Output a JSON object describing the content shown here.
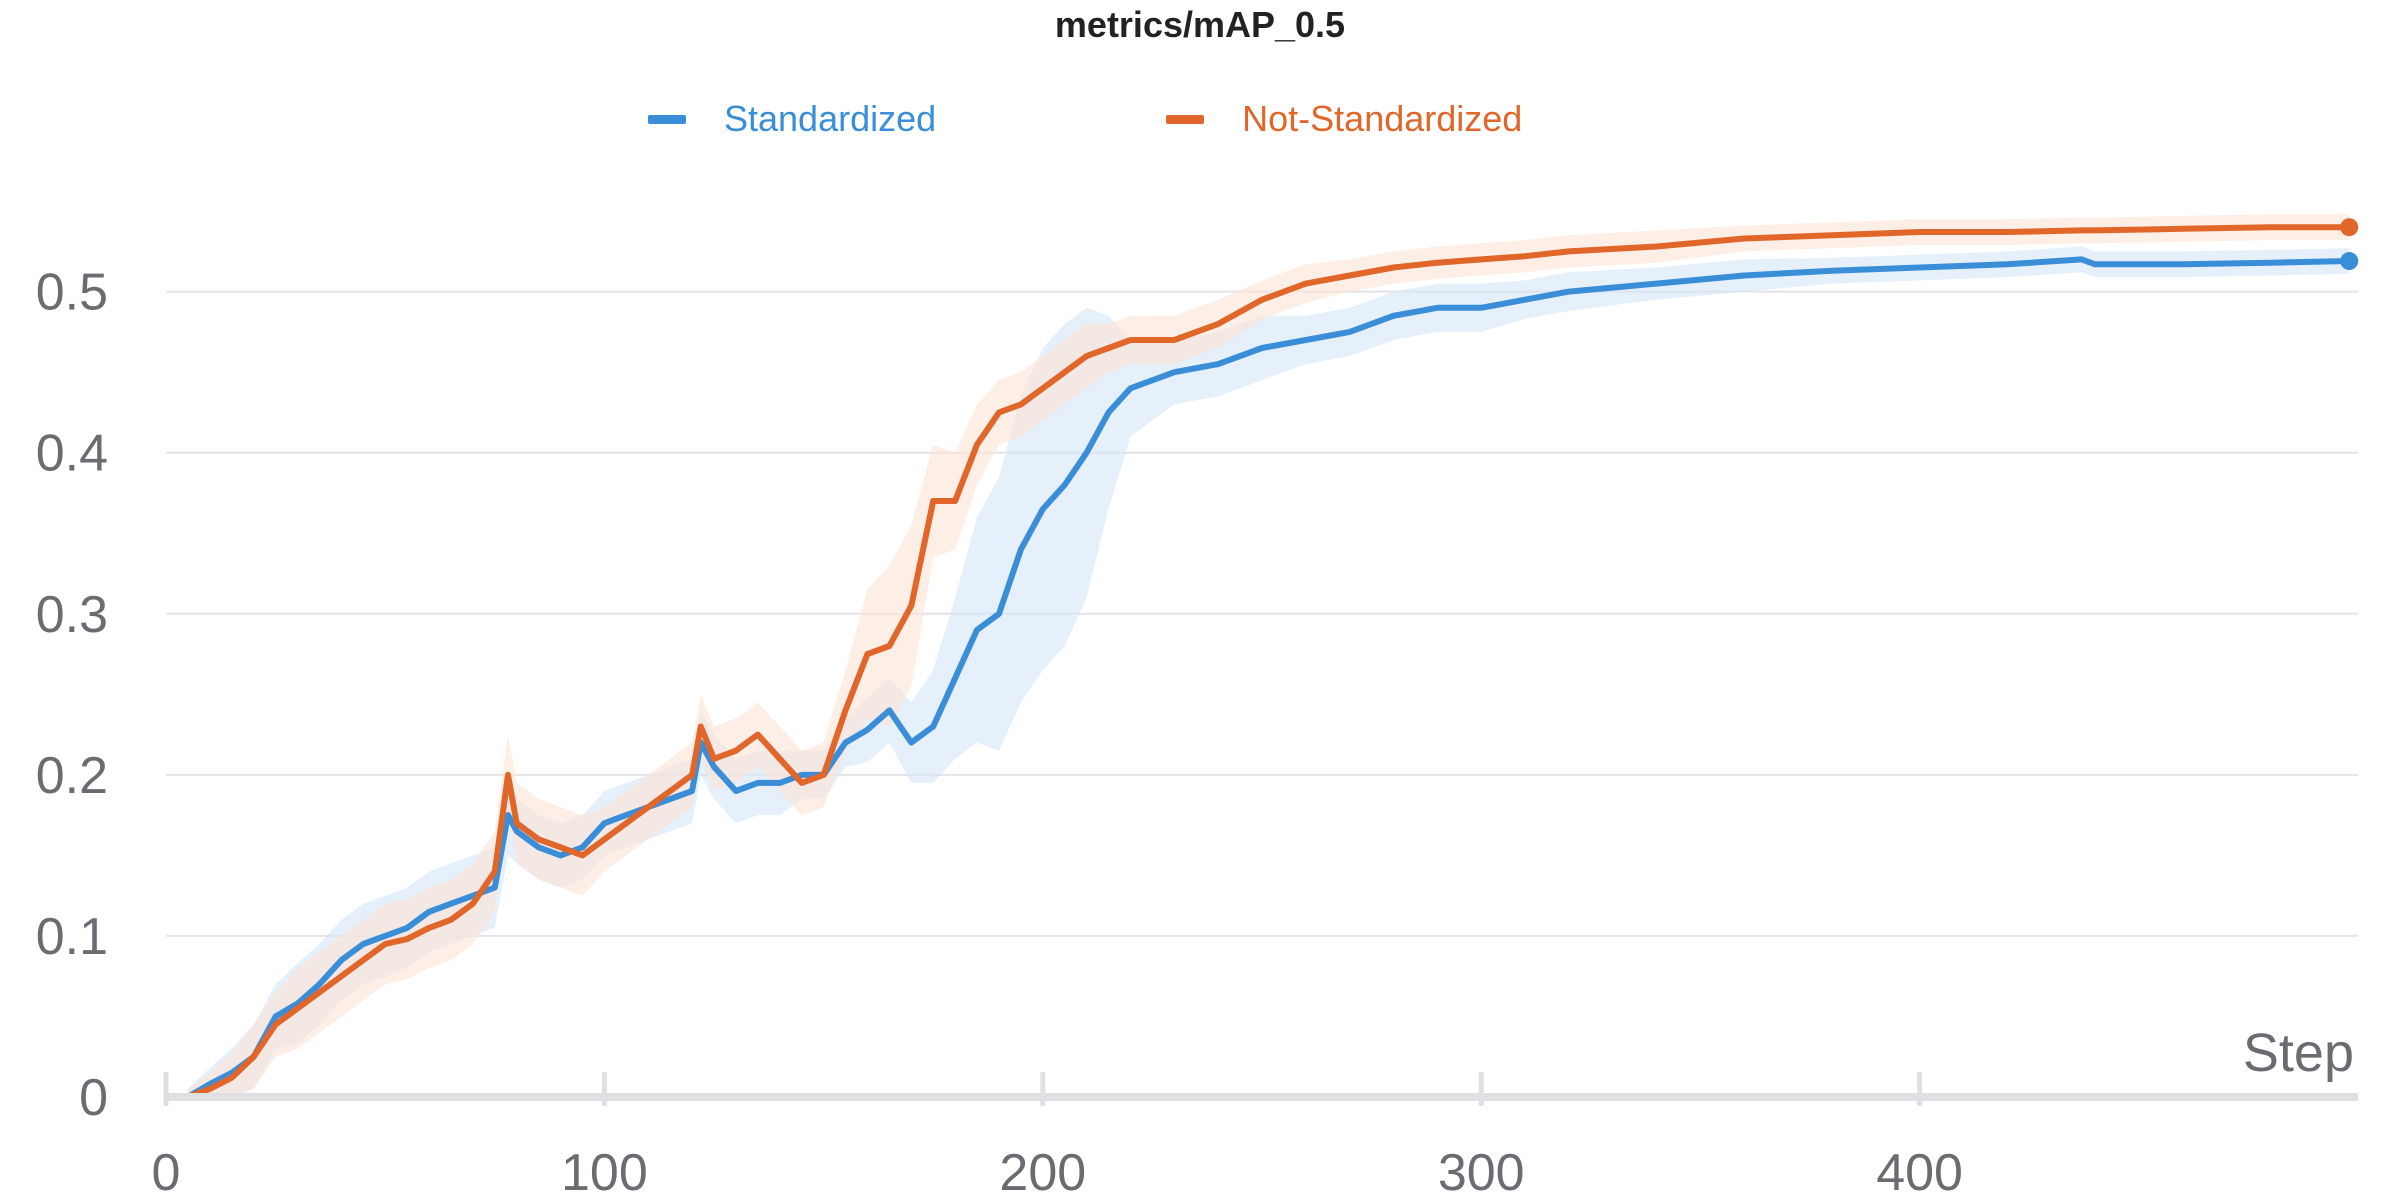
{
  "chart_data": {
    "type": "line",
    "title": "metrics/mAP_0.5",
    "xlabel": "Step",
    "ylabel": "",
    "xlim": [
      0,
      500
    ],
    "ylim": [
      0,
      0.56
    ],
    "grid": true,
    "legend_position": "top",
    "x_ticks": [
      "0",
      "100",
      "200",
      "300",
      "400"
    ],
    "x_tick_values": [
      0,
      100,
      200,
      300,
      400
    ],
    "y_ticks": [
      "0",
      "0.1",
      "0.2",
      "0.3",
      "0.4",
      "0.5"
    ],
    "y_tick_values": [
      0,
      0.1,
      0.2,
      0.3,
      0.4,
      0.5
    ],
    "series": [
      {
        "name": "Standardized",
        "color": "#3a8ed8",
        "band_color": "#d6e6f7",
        "x": [
          5,
          10,
          15,
          20,
          25,
          30,
          35,
          40,
          45,
          50,
          55,
          60,
          65,
          70,
          75,
          78,
          80,
          85,
          90,
          95,
          100,
          105,
          110,
          115,
          120,
          122,
          125,
          130,
          135,
          140,
          145,
          150,
          155,
          160,
          165,
          170,
          175,
          180,
          185,
          190,
          195,
          200,
          205,
          210,
          215,
          220,
          230,
          240,
          250,
          260,
          270,
          280,
          290,
          300,
          310,
          320,
          340,
          360,
          380,
          400,
          420,
          437,
          440,
          460,
          480,
          498
        ],
        "values": [
          0.0,
          0.008,
          0.015,
          0.025,
          0.05,
          0.058,
          0.07,
          0.085,
          0.095,
          0.1,
          0.105,
          0.115,
          0.12,
          0.125,
          0.13,
          0.175,
          0.165,
          0.155,
          0.15,
          0.155,
          0.17,
          0.175,
          0.18,
          0.185,
          0.19,
          0.22,
          0.205,
          0.19,
          0.195,
          0.195,
          0.2,
          0.2,
          0.22,
          0.228,
          0.24,
          0.22,
          0.23,
          0.26,
          0.29,
          0.3,
          0.34,
          0.365,
          0.38,
          0.4,
          0.425,
          0.44,
          0.45,
          0.455,
          0.465,
          0.47,
          0.475,
          0.485,
          0.49,
          0.49,
          0.495,
          0.5,
          0.505,
          0.51,
          0.513,
          0.515,
          0.517,
          0.52,
          0.517,
          0.517,
          0.518,
          0.519
        ],
        "band": [
          0.005,
          0.01,
          0.015,
          0.02,
          0.02,
          0.025,
          0.025,
          0.025,
          0.025,
          0.025,
          0.025,
          0.025,
          0.025,
          0.025,
          0.025,
          0.025,
          0.02,
          0.02,
          0.02,
          0.02,
          0.02,
          0.02,
          0.02,
          0.02,
          0.02,
          0.02,
          0.02,
          0.02,
          0.02,
          0.02,
          0.015,
          0.015,
          0.015,
          0.02,
          0.02,
          0.025,
          0.035,
          0.05,
          0.07,
          0.085,
          0.095,
          0.1,
          0.1,
          0.09,
          0.06,
          0.03,
          0.02,
          0.02,
          0.02,
          0.015,
          0.015,
          0.015,
          0.015,
          0.015,
          0.012,
          0.012,
          0.01,
          0.01,
          0.008,
          0.008,
          0.008,
          0.008,
          0.008,
          0.008,
          0.008,
          0.008
        ]
      },
      {
        "name": "Not-Standardized",
        "color": "#e0662a",
        "band_color": "#fbe3d6",
        "x": [
          5,
          10,
          15,
          20,
          25,
          30,
          35,
          40,
          45,
          50,
          55,
          60,
          65,
          70,
          75,
          78,
          80,
          85,
          90,
          95,
          100,
          105,
          110,
          115,
          120,
          122,
          125,
          130,
          135,
          140,
          145,
          150,
          155,
          160,
          165,
          170,
          175,
          180,
          185,
          190,
          195,
          200,
          205,
          210,
          215,
          220,
          230,
          240,
          250,
          260,
          270,
          280,
          290,
          300,
          310,
          320,
          340,
          360,
          380,
          400,
          420,
          437,
          440,
          460,
          480,
          498
        ],
        "values": [
          0.0,
          0.005,
          0.012,
          0.025,
          0.045,
          0.055,
          0.065,
          0.075,
          0.085,
          0.095,
          0.098,
          0.105,
          0.11,
          0.12,
          0.14,
          0.2,
          0.17,
          0.16,
          0.155,
          0.15,
          0.16,
          0.17,
          0.18,
          0.19,
          0.2,
          0.23,
          0.21,
          0.215,
          0.225,
          0.21,
          0.195,
          0.2,
          0.24,
          0.275,
          0.28,
          0.305,
          0.37,
          0.37,
          0.405,
          0.425,
          0.43,
          0.44,
          0.45,
          0.46,
          0.465,
          0.47,
          0.47,
          0.48,
          0.495,
          0.505,
          0.51,
          0.515,
          0.518,
          0.52,
          0.522,
          0.525,
          0.528,
          0.533,
          0.535,
          0.537,
          0.537,
          0.538,
          0.538,
          0.539,
          0.54,
          0.54
        ],
        "band": [
          0.005,
          0.01,
          0.015,
          0.02,
          0.02,
          0.025,
          0.025,
          0.025,
          0.025,
          0.025,
          0.025,
          0.025,
          0.025,
          0.025,
          0.025,
          0.025,
          0.025,
          0.025,
          0.025,
          0.025,
          0.02,
          0.02,
          0.02,
          0.02,
          0.02,
          0.02,
          0.02,
          0.02,
          0.02,
          0.02,
          0.02,
          0.02,
          0.025,
          0.04,
          0.05,
          0.05,
          0.035,
          0.03,
          0.025,
          0.02,
          0.02,
          0.02,
          0.02,
          0.02,
          0.015,
          0.015,
          0.015,
          0.015,
          0.012,
          0.012,
          0.01,
          0.01,
          0.01,
          0.01,
          0.01,
          0.01,
          0.01,
          0.008,
          0.008,
          0.008,
          0.008,
          0.008,
          0.008,
          0.008,
          0.008,
          0.008
        ]
      }
    ]
  }
}
